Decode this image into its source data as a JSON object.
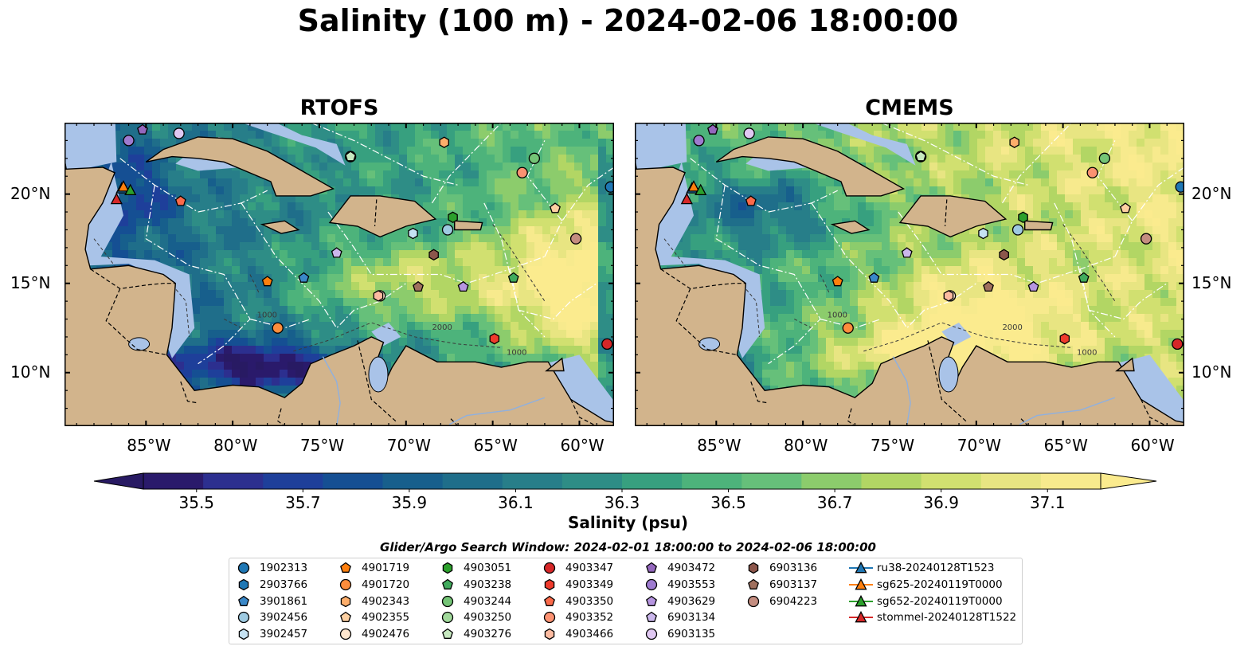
{
  "title": "Salinity (100 m) - 2024-02-06 18:00:00",
  "panels": [
    {
      "title": "RTOFS",
      "id": "rtofs"
    },
    {
      "title": "CMEMS",
      "id": "cmems"
    }
  ],
  "map": {
    "lon_range": [
      -89.7,
      -58.0
    ],
    "lat_range": [
      7.0,
      24.0
    ],
    "lon_ticks": [
      {
        "value": -85,
        "label": "85°W"
      },
      {
        "value": -80,
        "label": "80°W"
      },
      {
        "value": -75,
        "label": "75°W"
      },
      {
        "value": -70,
        "label": "70°W"
      },
      {
        "value": -65,
        "label": "65°W"
      },
      {
        "value": -60,
        "label": "60°W"
      }
    ],
    "lat_ticks": [
      {
        "value": 20,
        "label": "20°N"
      },
      {
        "value": 15,
        "label": "15°N"
      },
      {
        "value": 10,
        "label": "10°N"
      }
    ],
    "contour_labels": [
      "1000",
      "2000"
    ],
    "colors": {
      "land": "#d2b48c",
      "shelf": "#a9c3e8",
      "coast": "#000000",
      "borders": "#000000",
      "eez": "#ffffff"
    }
  },
  "colorbar": {
    "label": "Salinity (psu)",
    "min": 35.4,
    "max": 37.2,
    "step": 0.1,
    "ticks": [
      "35.5",
      "35.7",
      "35.9",
      "36.1",
      "36.3",
      "36.5",
      "36.7",
      "36.9",
      "37.1"
    ],
    "colors": [
      "#2a1a6b",
      "#2c2f8f",
      "#1e3f9a",
      "#154f93",
      "#175f8c",
      "#1f6e8a",
      "#277e89",
      "#2e8d86",
      "#37a07f",
      "#4db37b",
      "#66c07a",
      "#8ccc6c",
      "#b2d664",
      "#d1e070",
      "#e8e582",
      "#f7ea8d"
    ],
    "extend_low": "#281a63",
    "extend_high": "#fbeb8e"
  },
  "search_window": "Glider/Argo Search Window: 2024-02-01 18:00:00 to 2024-02-06 18:00:00",
  "argo_floats": [
    {
      "id": "1902313",
      "marker": "circle",
      "color": "#1f77b4",
      "lon": -58.2,
      "lat": 20.4
    },
    {
      "id": "2903766",
      "marker": "hexagon",
      "color": "#1f77b4",
      "lon": -85.5,
      "lat": 24.3
    },
    {
      "id": "3901861",
      "marker": "pentagon",
      "color": "#3a88c8",
      "lon": -75.9,
      "lat": 15.3
    },
    {
      "id": "3902456",
      "marker": "circle",
      "color": "#9ecae1",
      "lon": -67.6,
      "lat": 18.0
    },
    {
      "id": "3902457",
      "marker": "hexagon",
      "color": "#c6e2f2",
      "lon": -69.6,
      "lat": 17.8
    },
    {
      "id": "4901719",
      "marker": "pentagon",
      "color": "#ff7f0e",
      "lon": -78.0,
      "lat": 15.1
    },
    {
      "id": "4901720",
      "marker": "circle",
      "color": "#fd8d3c",
      "lon": -77.4,
      "lat": 12.5
    },
    {
      "id": "4902343",
      "marker": "hexagon",
      "color": "#fdae6b",
      "lon": -67.8,
      "lat": 22.9
    },
    {
      "id": "4902355",
      "marker": "pentagon",
      "color": "#fdd0a2",
      "lon": -61.4,
      "lat": 19.2
    },
    {
      "id": "4902476",
      "marker": "circle",
      "color": "#fee6ce",
      "lon": -71.5,
      "lat": 14.3
    },
    {
      "id": "4903051",
      "marker": "hexagon",
      "color": "#2ca02c",
      "lon": -67.3,
      "lat": 18.7
    },
    {
      "id": "4903238",
      "marker": "pentagon",
      "color": "#41ab5d",
      "lon": -63.8,
      "lat": 15.3
    },
    {
      "id": "4903244",
      "marker": "circle",
      "color": "#74c476",
      "lon": -62.6,
      "lat": 22.0
    },
    {
      "id": "4903250",
      "marker": "circle",
      "color": "#a1d99b",
      "lon": -73.2,
      "lat": 22.1
    },
    {
      "id": "4903276",
      "marker": "pentagon",
      "color": "#c7e9c0",
      "lon": -73.2,
      "lat": 22.1
    },
    {
      "id": "4903347",
      "marker": "circle",
      "color": "#d62728",
      "lon": -58.4,
      "lat": 11.6
    },
    {
      "id": "4903349",
      "marker": "hexagon",
      "color": "#ef3b2c",
      "lon": -64.9,
      "lat": 11.9
    },
    {
      "id": "4903350",
      "marker": "pentagon",
      "color": "#fb6a4a",
      "lon": -83.0,
      "lat": 19.6
    },
    {
      "id": "4903352",
      "marker": "circle",
      "color": "#fc9272",
      "lon": -63.3,
      "lat": 21.2
    },
    {
      "id": "4903466",
      "marker": "hexagon",
      "color": "#fcbba1",
      "lon": -71.6,
      "lat": 14.3
    },
    {
      "id": "4903472",
      "marker": "pentagon",
      "color": "#9467bd",
      "lon": -85.2,
      "lat": 23.6
    },
    {
      "id": "4903553",
      "marker": "circle",
      "color": "#9e7bd0",
      "lon": -86.0,
      "lat": 23.0
    },
    {
      "id": "4903629",
      "marker": "pentagon",
      "color": "#b695e0",
      "lon": -66.7,
      "lat": 14.8
    },
    {
      "id": "6903134",
      "marker": "pentagon",
      "color": "#cbb7ec",
      "lon": -74.0,
      "lat": 16.7
    },
    {
      "id": "6903135",
      "marker": "circle",
      "color": "#e0c8f2",
      "lon": -83.1,
      "lat": 23.4
    },
    {
      "id": "6903136",
      "marker": "hexagon",
      "color": "#8c564b",
      "lon": -68.4,
      "lat": 16.6
    },
    {
      "id": "6903137",
      "marker": "pentagon",
      "color": "#a0705e",
      "lon": -69.3,
      "lat": 14.8
    },
    {
      "id": "6904223",
      "marker": "circle",
      "color": "#c48d80",
      "lon": -60.2,
      "lat": 17.5
    }
  ],
  "gliders": [
    {
      "id": "ru38-20240128T1523",
      "color": "#1f77b4",
      "lon": -86.4,
      "lat": 20.3
    },
    {
      "id": "sg625-20240119T0000",
      "color": "#ff7f0e",
      "lon": -86.3,
      "lat": 20.4
    },
    {
      "id": "sg652-20240119T0000",
      "color": "#2ca02c",
      "lon": -85.9,
      "lat": 20.2
    },
    {
      "id": "stommel-20240128T1522",
      "color": "#d62728",
      "lon": -86.7,
      "lat": 19.7
    }
  ]
}
